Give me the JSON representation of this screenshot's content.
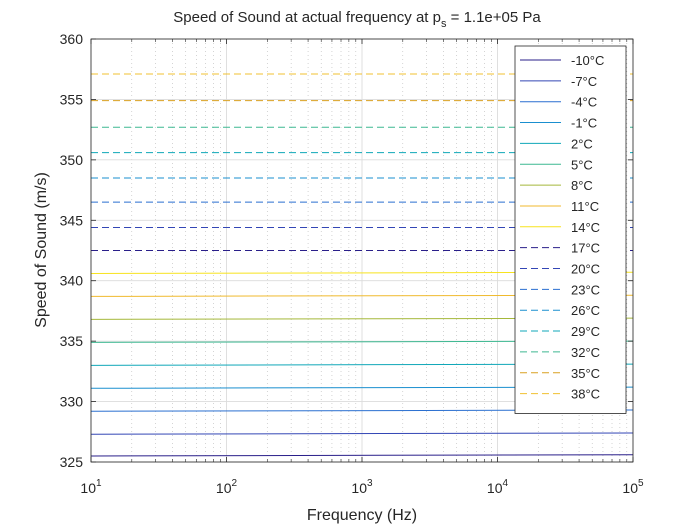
{
  "chart_data": {
    "type": "line",
    "title_main": "Speed of Sound at actual frequency at p",
    "title_sub": "s",
    "title_tail": " = 1.1e+05 Pa",
    "xlabel": "Frequency (Hz)",
    "ylabel": "Speed of Sound (m/s)",
    "xscale": "log",
    "xlim": [
      10,
      100000
    ],
    "ylim": [
      325,
      360
    ],
    "xticks": [
      {
        "value": 10,
        "base": "10",
        "exp": "1"
      },
      {
        "value": 100,
        "base": "10",
        "exp": "2"
      },
      {
        "value": 1000,
        "base": "10",
        "exp": "3"
      },
      {
        "value": 10000,
        "base": "10",
        "exp": "4"
      },
      {
        "value": 100000,
        "base": "10",
        "exp": "5"
      }
    ],
    "yticks": [
      325,
      330,
      335,
      340,
      345,
      350,
      355,
      360
    ],
    "ytick_labels": [
      "325",
      "330",
      "335",
      "340",
      "345",
      "350",
      "355",
      "360"
    ],
    "grid": true,
    "legend_position": "top-right",
    "series": [
      {
        "name": "-10°C",
        "color": "#2a1f8a",
        "dash": "solid",
        "y_start": 325.5,
        "y_end": 325.6
      },
      {
        "name": "-7°C",
        "color": "#3346b5",
        "dash": "solid",
        "y_start": 327.3,
        "y_end": 327.4
      },
      {
        "name": "-4°C",
        "color": "#2a6fd0",
        "dash": "solid",
        "y_start": 329.2,
        "y_end": 329.3
      },
      {
        "name": "-1°C",
        "color": "#1a8fcf",
        "dash": "solid",
        "y_start": 331.1,
        "y_end": 331.2
      },
      {
        "name": "2°C",
        "color": "#0fa7b8",
        "dash": "solid",
        "y_start": 333.0,
        "y_end": 333.1
      },
      {
        "name": "5°C",
        "color": "#3db891",
        "dash": "solid",
        "y_start": 334.9,
        "y_end": 335.0
      },
      {
        "name": "8°C",
        "color": "#a5b83a",
        "dash": "solid",
        "y_start": 336.8,
        "y_end": 336.9
      },
      {
        "name": "11°C",
        "color": "#f0ba2e",
        "dash": "solid",
        "y_start": 338.7,
        "y_end": 338.8
      },
      {
        "name": "14°C",
        "color": "#f7e31e",
        "dash": "solid",
        "y_start": 340.6,
        "y_end": 340.7
      },
      {
        "name": "17°C",
        "color": "#2a1f8a",
        "dash": "dashed",
        "y_start": 342.5,
        "y_end": 342.5
      },
      {
        "name": "20°C",
        "color": "#3346b5",
        "dash": "dashed",
        "y_start": 344.4,
        "y_end": 344.4
      },
      {
        "name": "23°C",
        "color": "#2a6fd0",
        "dash": "dashed",
        "y_start": 346.5,
        "y_end": 346.5
      },
      {
        "name": "26°C",
        "color": "#1a8fcf",
        "dash": "dashed",
        "y_start": 348.5,
        "y_end": 348.5
      },
      {
        "name": "29°C",
        "color": "#0fa7b8",
        "dash": "dashed",
        "y_start": 350.6,
        "y_end": 350.6
      },
      {
        "name": "32°C",
        "color": "#3db891",
        "dash": "dashed",
        "y_start": 352.7,
        "y_end": 352.7
      },
      {
        "name": "35°C",
        "color": "#d9a020",
        "dash": "dashed",
        "y_start": 354.9,
        "y_end": 354.9
      },
      {
        "name": "38°C",
        "color": "#f0c030",
        "dash": "dashed",
        "y_start": 357.1,
        "y_end": 357.1
      }
    ]
  }
}
